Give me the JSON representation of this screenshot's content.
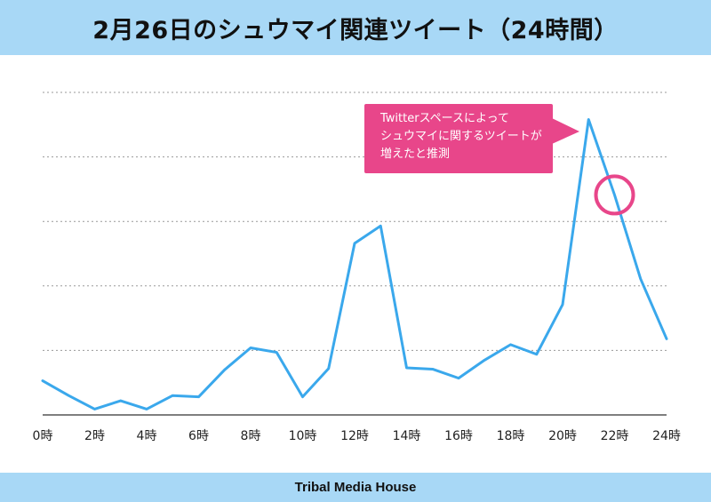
{
  "header": {
    "title": "2月26日のシュウマイ関連ツイート（24時間）"
  },
  "footer": {
    "brand": "Tribal Media House"
  },
  "annotation": {
    "lines": [
      "Twitterスペースによって",
      "シュウマイに関するツイートが",
      "増えたと推測"
    ],
    "color": "#e8468a",
    "target_hour": 22
  },
  "colors": {
    "line": "#3aa8ec",
    "band": "#a8d8f6",
    "grid": "#999999",
    "highlight": "#e8468a"
  },
  "chart_data": {
    "type": "line",
    "title": "2月26日のシュウマイ関連ツイート（24時間）",
    "xlabel": "",
    "ylabel": "",
    "grid": true,
    "x_tick_labels": [
      "0時",
      "2時",
      "4時",
      "6時",
      "8時",
      "10時",
      "12時",
      "14時",
      "16時",
      "18時",
      "20時",
      "22時",
      "24時"
    ],
    "x": [
      0,
      1,
      2,
      3,
      4,
      5,
      6,
      7,
      8,
      9,
      10,
      11,
      12,
      13,
      14,
      15,
      16,
      17,
      18,
      19,
      20,
      21,
      22,
      23,
      24
    ],
    "series": [
      {
        "values": [
          0.53,
          0.3,
          0.09,
          0.22,
          0.09,
          0.3,
          0.28,
          0.7,
          1.04,
          0.97,
          0.28,
          0.72,
          2.66,
          2.93,
          0.73,
          0.71,
          0.57,
          0.85,
          1.09,
          0.94,
          1.71,
          4.58,
          3.41,
          2.11,
          1.18
        ]
      }
    ],
    "ylim": [
      0,
      5
    ]
  }
}
